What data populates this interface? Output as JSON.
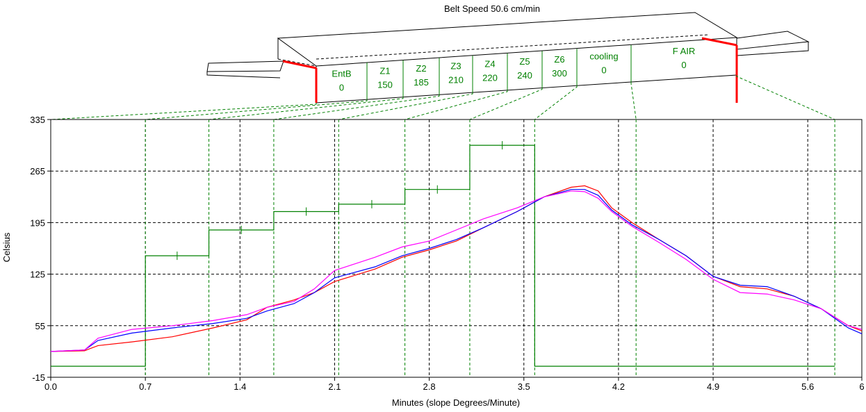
{
  "chart_data": {
    "type": "line",
    "title": "Belt Speed 50.6 cm/min",
    "xlabel": "Minutes (slope Degrees/Minute)",
    "ylabel": "Celsius",
    "xlim": [
      0,
      6
    ],
    "ylim": [
      -15,
      335
    ],
    "grid": true,
    "x_ticks": [
      "0.0",
      "0.7",
      "1.4",
      "2.1",
      "2.8",
      "3.5",
      "4.2",
      "4.9",
      "5.6",
      "6"
    ],
    "y_ticks": [
      "-15",
      "55",
      "125",
      "195",
      "265",
      "335"
    ],
    "zones": [
      {
        "name": "EntB",
        "temp": "0"
      },
      {
        "name": "Z1",
        "temp": "150"
      },
      {
        "name": "Z2",
        "temp": "185"
      },
      {
        "name": "Z3",
        "temp": "210"
      },
      {
        "name": "Z4",
        "temp": "220"
      },
      {
        "name": "Z5",
        "temp": "240"
      },
      {
        "name": "Z6",
        "temp": "300"
      },
      {
        "name": "cooling",
        "temp": "0"
      },
      {
        "name": "F AIR",
        "temp": "0"
      }
    ],
    "zone_boundaries": [
      0.7,
      1.17,
      1.65,
      2.13,
      2.62,
      3.1,
      3.58,
      4.33,
      5.8
    ],
    "setpoint": {
      "color": "#008000",
      "x": [
        0.0,
        0.7,
        0.7,
        1.17,
        1.17,
        1.65,
        1.65,
        2.13,
        2.13,
        2.62,
        2.62,
        3.1,
        3.1,
        3.58,
        3.58,
        5.8
      ],
      "y": [
        0,
        0,
        150,
        150,
        185,
        185,
        210,
        210,
        220,
        220,
        240,
        240,
        300,
        300,
        0,
        0
      ]
    },
    "series": [
      {
        "color": "#ff0000",
        "x": [
          0.0,
          0.25,
          0.35,
          0.6,
          0.9,
          1.2,
          1.45,
          1.6,
          1.8,
          1.95,
          2.1,
          2.4,
          2.6,
          2.8,
          3.0,
          3.2,
          3.45,
          3.65,
          3.85,
          3.95,
          4.05,
          4.15,
          4.3,
          4.5,
          4.7,
          4.9,
          5.1,
          5.3,
          5.5,
          5.7,
          5.9,
          6.0
        ],
        "y": [
          20,
          21,
          28,
          33,
          40,
          52,
          63,
          80,
          90,
          100,
          115,
          132,
          148,
          158,
          170,
          188,
          210,
          230,
          243,
          245,
          238,
          215,
          195,
          172,
          150,
          122,
          108,
          105,
          95,
          78,
          55,
          48
        ]
      },
      {
        "color": "#0000ff",
        "x": [
          0.0,
          0.25,
          0.35,
          0.6,
          0.9,
          1.2,
          1.45,
          1.6,
          1.8,
          1.95,
          2.1,
          2.4,
          2.6,
          2.8,
          3.0,
          3.2,
          3.45,
          3.65,
          3.85,
          3.95,
          4.05,
          4.15,
          4.3,
          4.5,
          4.7,
          4.9,
          5.1,
          5.3,
          5.5,
          5.7,
          5.9,
          6.0
        ],
        "y": [
          20,
          22,
          35,
          45,
          52,
          58,
          65,
          75,
          85,
          100,
          120,
          135,
          150,
          160,
          172,
          188,
          210,
          230,
          240,
          240,
          232,
          212,
          192,
          172,
          150,
          122,
          110,
          108,
          95,
          78,
          52,
          44
        ]
      },
      {
        "color": "#ff00ff",
        "x": [
          0.0,
          0.25,
          0.35,
          0.6,
          0.9,
          1.2,
          1.45,
          1.6,
          1.8,
          1.95,
          2.1,
          2.4,
          2.6,
          2.8,
          3.0,
          3.2,
          3.45,
          3.65,
          3.85,
          3.95,
          4.05,
          4.15,
          4.3,
          4.5,
          4.7,
          4.9,
          5.1,
          5.3,
          5.5,
          5.7,
          5.9,
          6.0
        ],
        "y": [
          20,
          22,
          38,
          50,
          55,
          62,
          70,
          80,
          88,
          105,
          130,
          148,
          162,
          170,
          185,
          200,
          215,
          230,
          238,
          237,
          228,
          210,
          190,
          168,
          145,
          118,
          100,
          98,
          90,
          78,
          55,
          50
        ]
      }
    ]
  }
}
